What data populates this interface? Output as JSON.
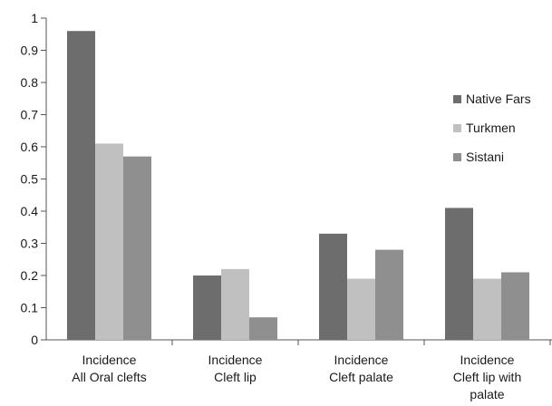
{
  "chart_data": {
    "type": "bar",
    "categories": [
      [
        "Incidence",
        "All Oral clefts"
      ],
      [
        "Incidence",
        "Cleft lip"
      ],
      [
        "Incidence",
        "Cleft palate"
      ],
      [
        "Incidence",
        "Cleft lip with",
        "palate"
      ]
    ],
    "series": [
      {
        "name": "Native Fars",
        "color": "#6d6d6d",
        "values": [
          0.96,
          0.2,
          0.33,
          0.41
        ]
      },
      {
        "name": "Turkmen",
        "color": "#c0c0c0",
        "values": [
          0.61,
          0.22,
          0.19,
          0.19
        ]
      },
      {
        "name": "Sistani",
        "color": "#8f8f8f",
        "values": [
          0.57,
          0.07,
          0.28,
          0.21
        ]
      }
    ],
    "ylim": [
      0,
      1
    ],
    "yticks": [
      "0",
      "0.1",
      "0.2",
      "0.3",
      "0.4",
      "0.5",
      "0.6",
      "0.7",
      "0.8",
      "0.9",
      "1"
    ],
    "grid": false,
    "legend_position": "right"
  }
}
